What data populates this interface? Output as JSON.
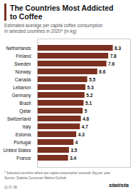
{
  "chart_data": {
    "type": "bar",
    "orientation": "horizontal",
    "title": "The Countries Most Addicted\nto Coffee",
    "subtitle": "Estimated average per capita coffee consumption\nin selected countries in 2020* (in kg)",
    "categories": [
      "Netherlands",
      "Finland",
      "Sweden",
      "Norway",
      "Canada",
      "Lebanon",
      "Germany",
      "Brazil",
      "Qatar",
      "Switzerland",
      "Italy",
      "Estonia",
      "Portugal",
      "United States",
      "France"
    ],
    "values": [
      8.3,
      7.8,
      7.6,
      6.6,
      5.5,
      5.3,
      5.2,
      5.1,
      5.0,
      4.8,
      4.7,
      4.3,
      4.0,
      3.5,
      3.4
    ],
    "color": "#7B3020",
    "xlim": [
      0,
      10.2
    ],
    "data_labels": true,
    "tick_labels": "y",
    "grid": false,
    "annotations": [
      "* Selected countries where per capita consumption exceeds 3kg per year.",
      "Source: Statista Consumer Market Outlook",
      "ⓒ  Ⓕ  Ⓜ",
      "statista"
    ]
  }
}
